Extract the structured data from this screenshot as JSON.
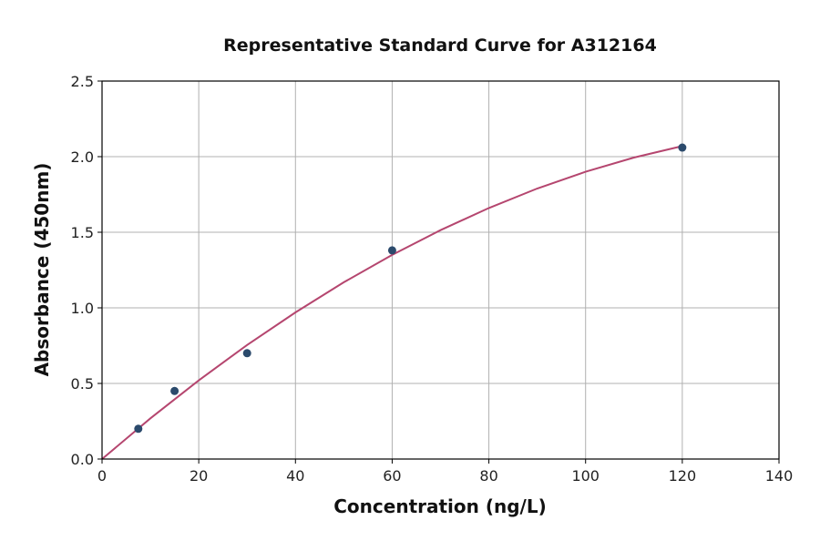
{
  "chart_data": {
    "type": "scatter",
    "title": "Representative Standard Curve for A312164",
    "xlabel": "Concentration (ng/L)",
    "ylabel": "Absorbance (450nm)",
    "xlim": [
      0,
      140
    ],
    "ylim": [
      0,
      2.5
    ],
    "xticks": [
      "0",
      "20",
      "40",
      "60",
      "80",
      "100",
      "120",
      "140"
    ],
    "yticks": [
      "0.0",
      "0.5",
      "1.0",
      "1.5",
      "2.0",
      "2.5"
    ],
    "grid": true,
    "points": [
      {
        "x": 7.5,
        "y": 0.2
      },
      {
        "x": 15,
        "y": 0.45
      },
      {
        "x": 30,
        "y": 0.7
      },
      {
        "x": 60,
        "y": 1.38
      },
      {
        "x": 120,
        "y": 2.06
      }
    ],
    "fit_curve": {
      "x": [
        0,
        10,
        20,
        30,
        40,
        50,
        60,
        70,
        80,
        90,
        100,
        110,
        120
      ],
      "y": [
        0,
        0.269,
        0.52,
        0.754,
        0.97,
        1.169,
        1.35,
        1.514,
        1.66,
        1.789,
        1.9,
        1.994,
        2.07
      ]
    },
    "colors": {
      "points": "#2b4a6c",
      "curve": "#b5466f",
      "grid": "#b0b0b0"
    }
  }
}
